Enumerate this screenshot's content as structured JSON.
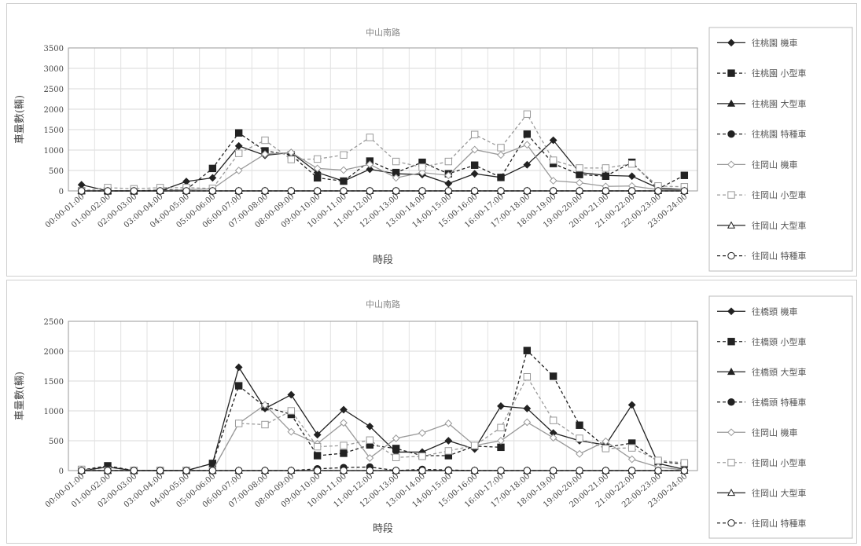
{
  "chart_data": [
    {
      "type": "line",
      "title": "中山南路",
      "xlabel": "時段",
      "ylabel": "車量數(輛)",
      "ylim": [
        0,
        3500
      ],
      "yticks": [
        0,
        500,
        1000,
        1500,
        2000,
        2500,
        3000,
        3500
      ],
      "grid": true,
      "legend_position": "right",
      "categories": [
        "00:00-01:00",
        "01:00-02:00",
        "02:00-03:00",
        "03:00-04:00",
        "04:00-05:00",
        "05:00-06:00",
        "06:00-07:00",
        "07:00-08:00",
        "08:00-09:00",
        "09:00-10:00",
        "10:00-11:00",
        "11:00-12:00",
        "12:00-13:00",
        "13:00-14:00",
        "14:00-15:00",
        "15:00-16:00",
        "16:00-17:00",
        "17:00-18:00",
        "18:00-19:00",
        "19:00-20:00",
        "20:00-21:00",
        "21:00-22:00",
        "22:00-23:00",
        "23:00-24:00"
      ],
      "series": [
        {
          "name": "往桃園 機車",
          "color": "#222222",
          "marker": "diamond",
          "dash": false,
          "values": [
            150,
            0,
            0,
            0,
            230,
            320,
            1100,
            870,
            940,
            450,
            240,
            530,
            420,
            400,
            180,
            420,
            330,
            640,
            1240,
            450,
            380,
            360,
            70,
            30
          ]
        },
        {
          "name": "往桃園 小型車",
          "color": "#222222",
          "marker": "square-filled",
          "dash": true,
          "values": [
            0,
            0,
            0,
            20,
            30,
            550,
            1420,
            980,
            880,
            320,
            240,
            730,
            450,
            700,
            420,
            630,
            330,
            1390,
            670,
            400,
            360,
            700,
            50,
            380
          ]
        },
        {
          "name": "往桃園 大型車",
          "color": "#222222",
          "marker": "triangle-filled",
          "dash": false,
          "values": [
            0,
            0,
            0,
            0,
            0,
            0,
            0,
            0,
            0,
            0,
            0,
            0,
            0,
            0,
            0,
            0,
            0,
            0,
            0,
            0,
            0,
            0,
            0,
            0
          ]
        },
        {
          "name": "往桃園 特種車",
          "color": "#222222",
          "marker": "circle-filled",
          "dash": true,
          "values": [
            0,
            0,
            0,
            0,
            0,
            0,
            0,
            0,
            0,
            0,
            0,
            0,
            0,
            0,
            0,
            0,
            0,
            0,
            0,
            0,
            0,
            0,
            0,
            0
          ]
        },
        {
          "name": "往岡山 機車",
          "color": "#999999",
          "marker": "diamond-open",
          "dash": false,
          "values": [
            0,
            0,
            0,
            0,
            30,
            50,
            500,
            900,
            940,
            550,
            510,
            650,
            320,
            450,
            380,
            1010,
            880,
            1130,
            250,
            200,
            110,
            120,
            30,
            20
          ]
        },
        {
          "name": "往岡山 小型車",
          "color": "#999999",
          "marker": "square-open",
          "dash": true,
          "values": [
            0,
            80,
            50,
            80,
            80,
            60,
            920,
            1240,
            770,
            780,
            880,
            1310,
            720,
            580,
            720,
            1380,
            1060,
            1880,
            750,
            560,
            560,
            660,
            120,
            100
          ]
        },
        {
          "name": "往岡山 大型車",
          "color": "#222222",
          "marker": "triangle-open",
          "dash": false,
          "values": [
            0,
            0,
            0,
            0,
            0,
            0,
            0,
            0,
            0,
            0,
            0,
            0,
            0,
            0,
            0,
            0,
            0,
            0,
            0,
            0,
            0,
            0,
            0,
            0
          ]
        },
        {
          "name": "往岡山 特種車",
          "color": "#222222",
          "marker": "circle-open",
          "dash": true,
          "values": [
            0,
            0,
            0,
            0,
            0,
            0,
            0,
            0,
            0,
            0,
            0,
            0,
            0,
            0,
            0,
            0,
            0,
            0,
            0,
            0,
            0,
            0,
            0,
            0
          ]
        }
      ]
    },
    {
      "type": "line",
      "title": "中山南路",
      "xlabel": "時段",
      "ylabel": "車量數(輛)",
      "ylim": [
        0,
        2500
      ],
      "yticks": [
        0,
        500,
        1000,
        1500,
        2000,
        2500
      ],
      "grid": true,
      "legend_position": "right",
      "categories": [
        "00:00-01:00",
        "01:00-02:00",
        "02:00-03:00",
        "03:00-04:00",
        "04:00-05:00",
        "05:00-06:00",
        "06:00-07:00",
        "07:00-08:00",
        "08:00-09:00",
        "09:00-10:00",
        "10:00-11:00",
        "11:00-12:00",
        "12:00-13:00",
        "13:00-14:00",
        "14:00-15:00",
        "15:00-16:00",
        "16:00-17:00",
        "17:00-18:00",
        "18:00-19:00",
        "19:00-20:00",
        "20:00-21:00",
        "21:00-22:00",
        "22:00-23:00",
        "23:00-24:00"
      ],
      "series": [
        {
          "name": "往橋頭 機車",
          "color": "#222222",
          "marker": "diamond",
          "dash": false,
          "values": [
            0,
            60,
            0,
            0,
            0,
            120,
            1730,
            1040,
            1270,
            600,
            1020,
            740,
            310,
            310,
            500,
            360,
            1080,
            1040,
            630,
            500,
            430,
            1100,
            120,
            20
          ]
        },
        {
          "name": "往橋頭 小型車",
          "color": "#222222",
          "marker": "square-filled",
          "dash": true,
          "values": [
            10,
            80,
            0,
            0,
            0,
            120,
            1420,
            1070,
            940,
            250,
            290,
            430,
            370,
            250,
            250,
            410,
            390,
            2010,
            1580,
            760,
            390,
            460,
            150,
            110
          ]
        },
        {
          "name": "往橋頭 大型車",
          "color": "#222222",
          "marker": "triangle-filled",
          "dash": false,
          "values": [
            0,
            0,
            0,
            0,
            0,
            0,
            0,
            0,
            0,
            0,
            0,
            0,
            0,
            0,
            0,
            0,
            0,
            0,
            0,
            0,
            0,
            0,
            0,
            0
          ]
        },
        {
          "name": "往橋頭 特種車",
          "color": "#222222",
          "marker": "circle-filled",
          "dash": true,
          "values": [
            0,
            0,
            0,
            0,
            0,
            0,
            0,
            0,
            0,
            30,
            50,
            60,
            0,
            20,
            10,
            0,
            0,
            0,
            0,
            0,
            0,
            0,
            0,
            0
          ]
        },
        {
          "name": "往岡山 機車",
          "color": "#999999",
          "marker": "diamond-open",
          "dash": false,
          "values": [
            0,
            0,
            0,
            0,
            0,
            0,
            790,
            1100,
            650,
            450,
            800,
            210,
            540,
            630,
            790,
            420,
            500,
            810,
            550,
            280,
            490,
            190,
            60,
            10
          ]
        },
        {
          "name": "往岡山 小型車",
          "color": "#999999",
          "marker": "square-open",
          "dash": true,
          "values": [
            20,
            0,
            0,
            0,
            0,
            0,
            790,
            770,
            1000,
            400,
            420,
            510,
            220,
            240,
            330,
            420,
            720,
            1570,
            840,
            540,
            370,
            380,
            170,
            130
          ]
        },
        {
          "name": "往岡山 大型車",
          "color": "#222222",
          "marker": "triangle-open",
          "dash": false,
          "values": [
            0,
            0,
            0,
            0,
            0,
            0,
            0,
            0,
            0,
            0,
            0,
            0,
            0,
            0,
            0,
            0,
            0,
            0,
            0,
            0,
            0,
            0,
            0,
            0
          ]
        },
        {
          "name": "往岡山 特種車",
          "color": "#222222",
          "marker": "circle-open",
          "dash": true,
          "values": [
            0,
            0,
            0,
            0,
            0,
            0,
            0,
            0,
            0,
            0,
            0,
            0,
            0,
            0,
            0,
            0,
            0,
            0,
            0,
            0,
            0,
            0,
            0,
            0
          ]
        }
      ]
    }
  ]
}
